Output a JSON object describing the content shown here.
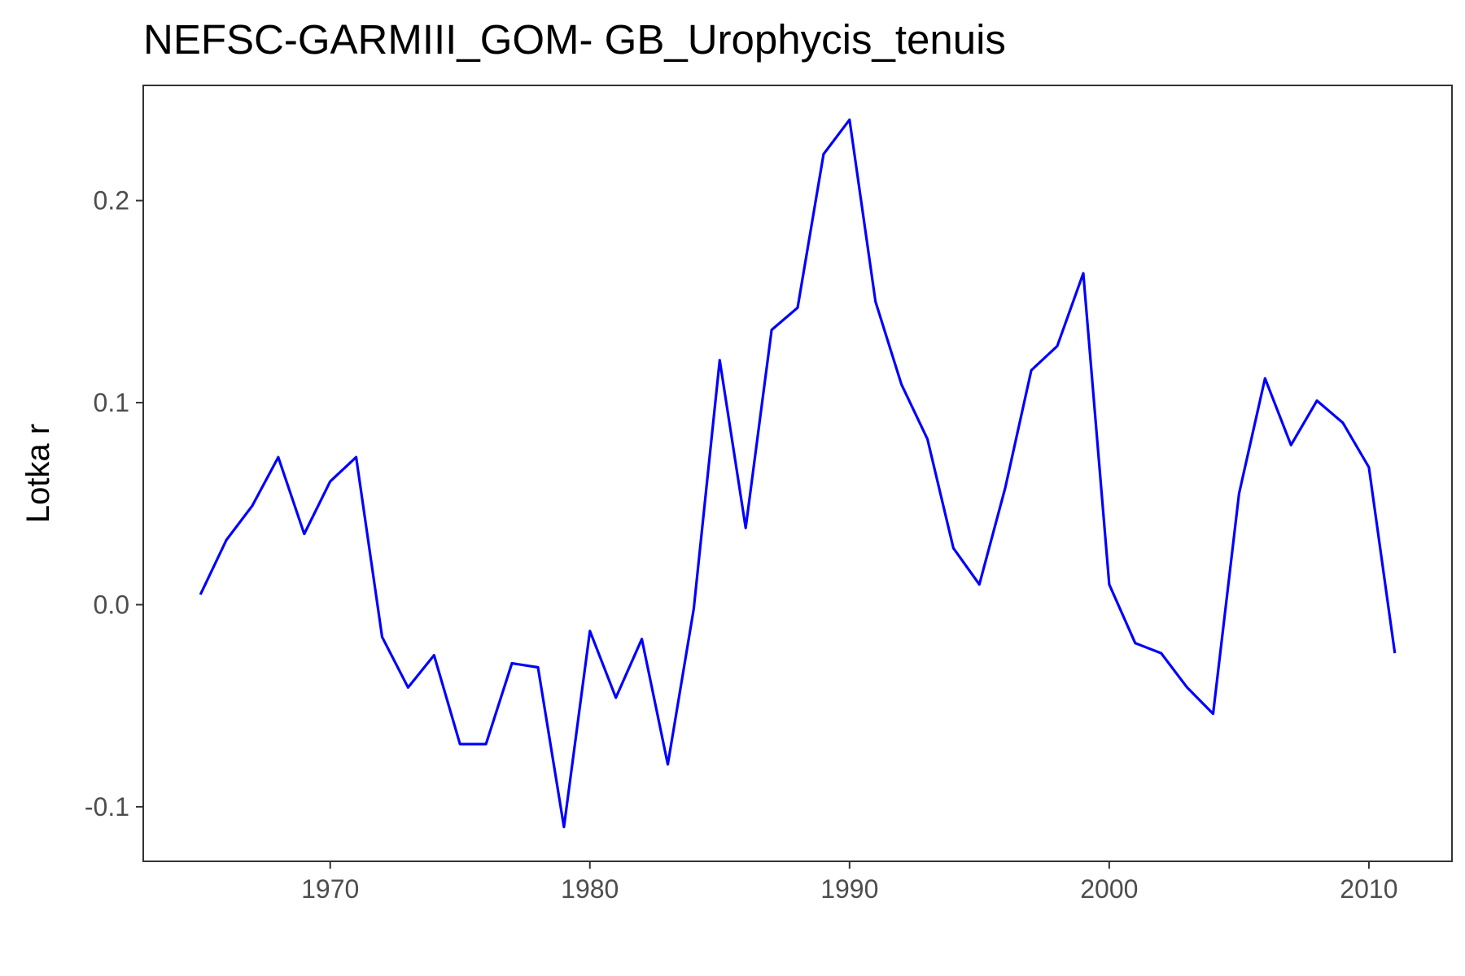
{
  "chart_data": {
    "type": "line",
    "title": "NEFSC-GARMIII_GOM- GB_Urophycis_tenuis",
    "xlabel": "",
    "ylabel": "Lotka r",
    "xlim": [
      1962.8,
      2013.2
    ],
    "ylim": [
      -0.127,
      0.257
    ],
    "x_ticks": [
      1970,
      1980,
      1990,
      2000,
      2010
    ],
    "x_tick_labels": [
      "1970",
      "1980",
      "1990",
      "2000",
      "2010"
    ],
    "y_ticks": [
      -0.1,
      0.0,
      0.1,
      0.2
    ],
    "y_tick_labels": [
      "-0.1",
      "0.0",
      "0.1",
      "0.2"
    ],
    "grid": false,
    "line_color": "#0000ff",
    "series": [
      {
        "x": [
          1965,
          1966,
          1967,
          1968,
          1969,
          1970,
          1971,
          1972,
          1973,
          1974,
          1975,
          1976,
          1977,
          1978,
          1979,
          1980,
          1981,
          1982,
          1983,
          1984,
          1985,
          1986,
          1987,
          1988,
          1989,
          1990,
          1991,
          1992,
          1993,
          1994,
          1995,
          1996,
          1997,
          1998,
          1999,
          2000,
          2001,
          2002,
          2003,
          2004,
          2005,
          2006,
          2007,
          2008,
          2009,
          2010,
          2011
        ],
        "values": [
          0.005,
          0.032,
          0.049,
          0.073,
          0.035,
          0.061,
          0.073,
          -0.016,
          -0.041,
          -0.025,
          -0.069,
          -0.069,
          -0.029,
          -0.031,
          -0.11,
          -0.013,
          -0.046,
          -0.017,
          -0.079,
          -0.002,
          0.121,
          0.038,
          0.136,
          0.147,
          0.223,
          0.24,
          0.15,
          0.109,
          0.082,
          0.028,
          0.01,
          0.058,
          0.116,
          0.128,
          0.164,
          0.01,
          -0.019,
          -0.024,
          -0.041,
          -0.054,
          0.055,
          0.112,
          0.079,
          0.101,
          0.09,
          0.068,
          -0.024
        ]
      }
    ]
  }
}
